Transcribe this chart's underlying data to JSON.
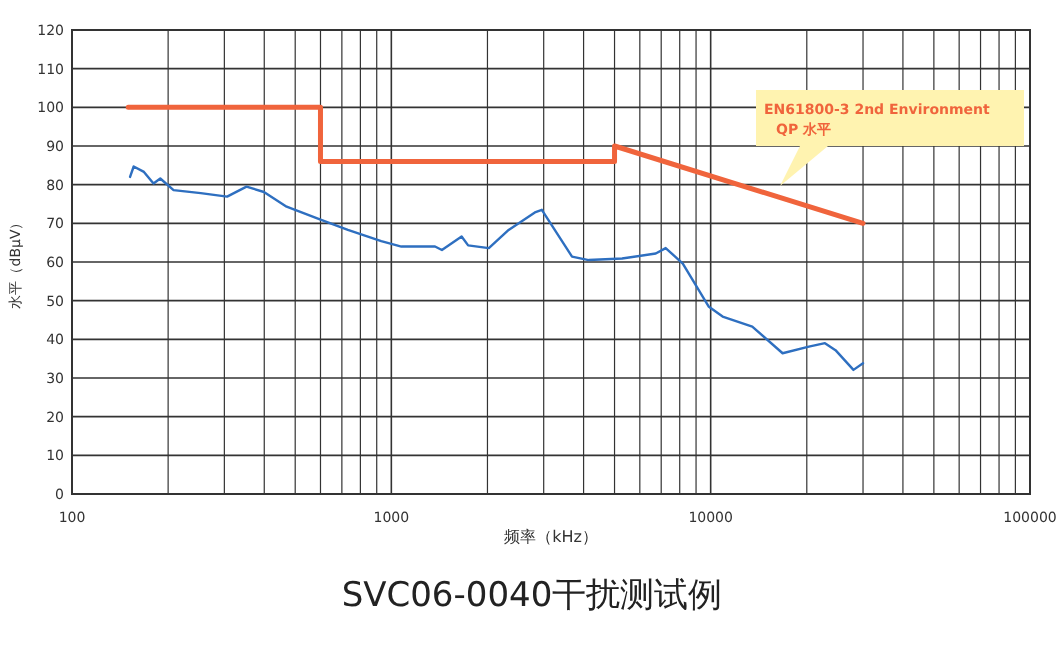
{
  "chart_data": {
    "type": "line",
    "title": "SVC06-0040干扰测试例",
    "xlabel": "频率（kHz）",
    "ylabel": "水平（dBμV）",
    "log": "x",
    "xlim": [
      100,
      100000
    ],
    "xticks": [
      100,
      1000,
      10000,
      100000
    ],
    "ylim": [
      0,
      120
    ],
    "yticks": [
      0,
      10,
      20,
      30,
      40,
      50,
      60,
      70,
      80,
      90,
      100,
      110,
      120
    ],
    "grid": true,
    "annotations": [
      "EN61800-3 2nd Environment\nQP 水平"
    ],
    "series": [
      {
        "color": "#f0643c",
        "x": [
          150,
          600,
          600,
          5000,
          5000,
          30000
        ],
        "values": [
          100,
          100,
          86,
          86,
          90,
          70
        ]
      },
      {
        "color": "#2e6fc0",
        "x": [
          152,
          156,
          168,
          180,
          189,
          208,
          253,
          306,
          352,
          399,
          470,
          603,
          731,
          930,
          1075,
          1370,
          1440,
          1660,
          1740,
          2020,
          2330,
          2830,
          2960,
          3680,
          4150,
          5280,
          6730,
          7230,
          8180,
          9850,
          10900,
          13500,
          16800,
          20300,
          22800,
          24600,
          28000,
          30000
        ],
        "values": [
          82,
          84.7,
          83.3,
          80.3,
          81.6,
          78.6,
          77.8,
          76.9,
          79.5,
          78.1,
          74.3,
          70.9,
          68.3,
          65.4,
          64,
          64,
          63.1,
          66.6,
          64.3,
          63.6,
          68.3,
          72.9,
          73.5,
          61.4,
          60.5,
          60.9,
          62.2,
          63.6,
          59.6,
          48.5,
          45.9,
          43.3,
          36.4,
          38.1,
          39,
          37.2,
          32.1,
          33.8
        ]
      }
    ]
  }
}
